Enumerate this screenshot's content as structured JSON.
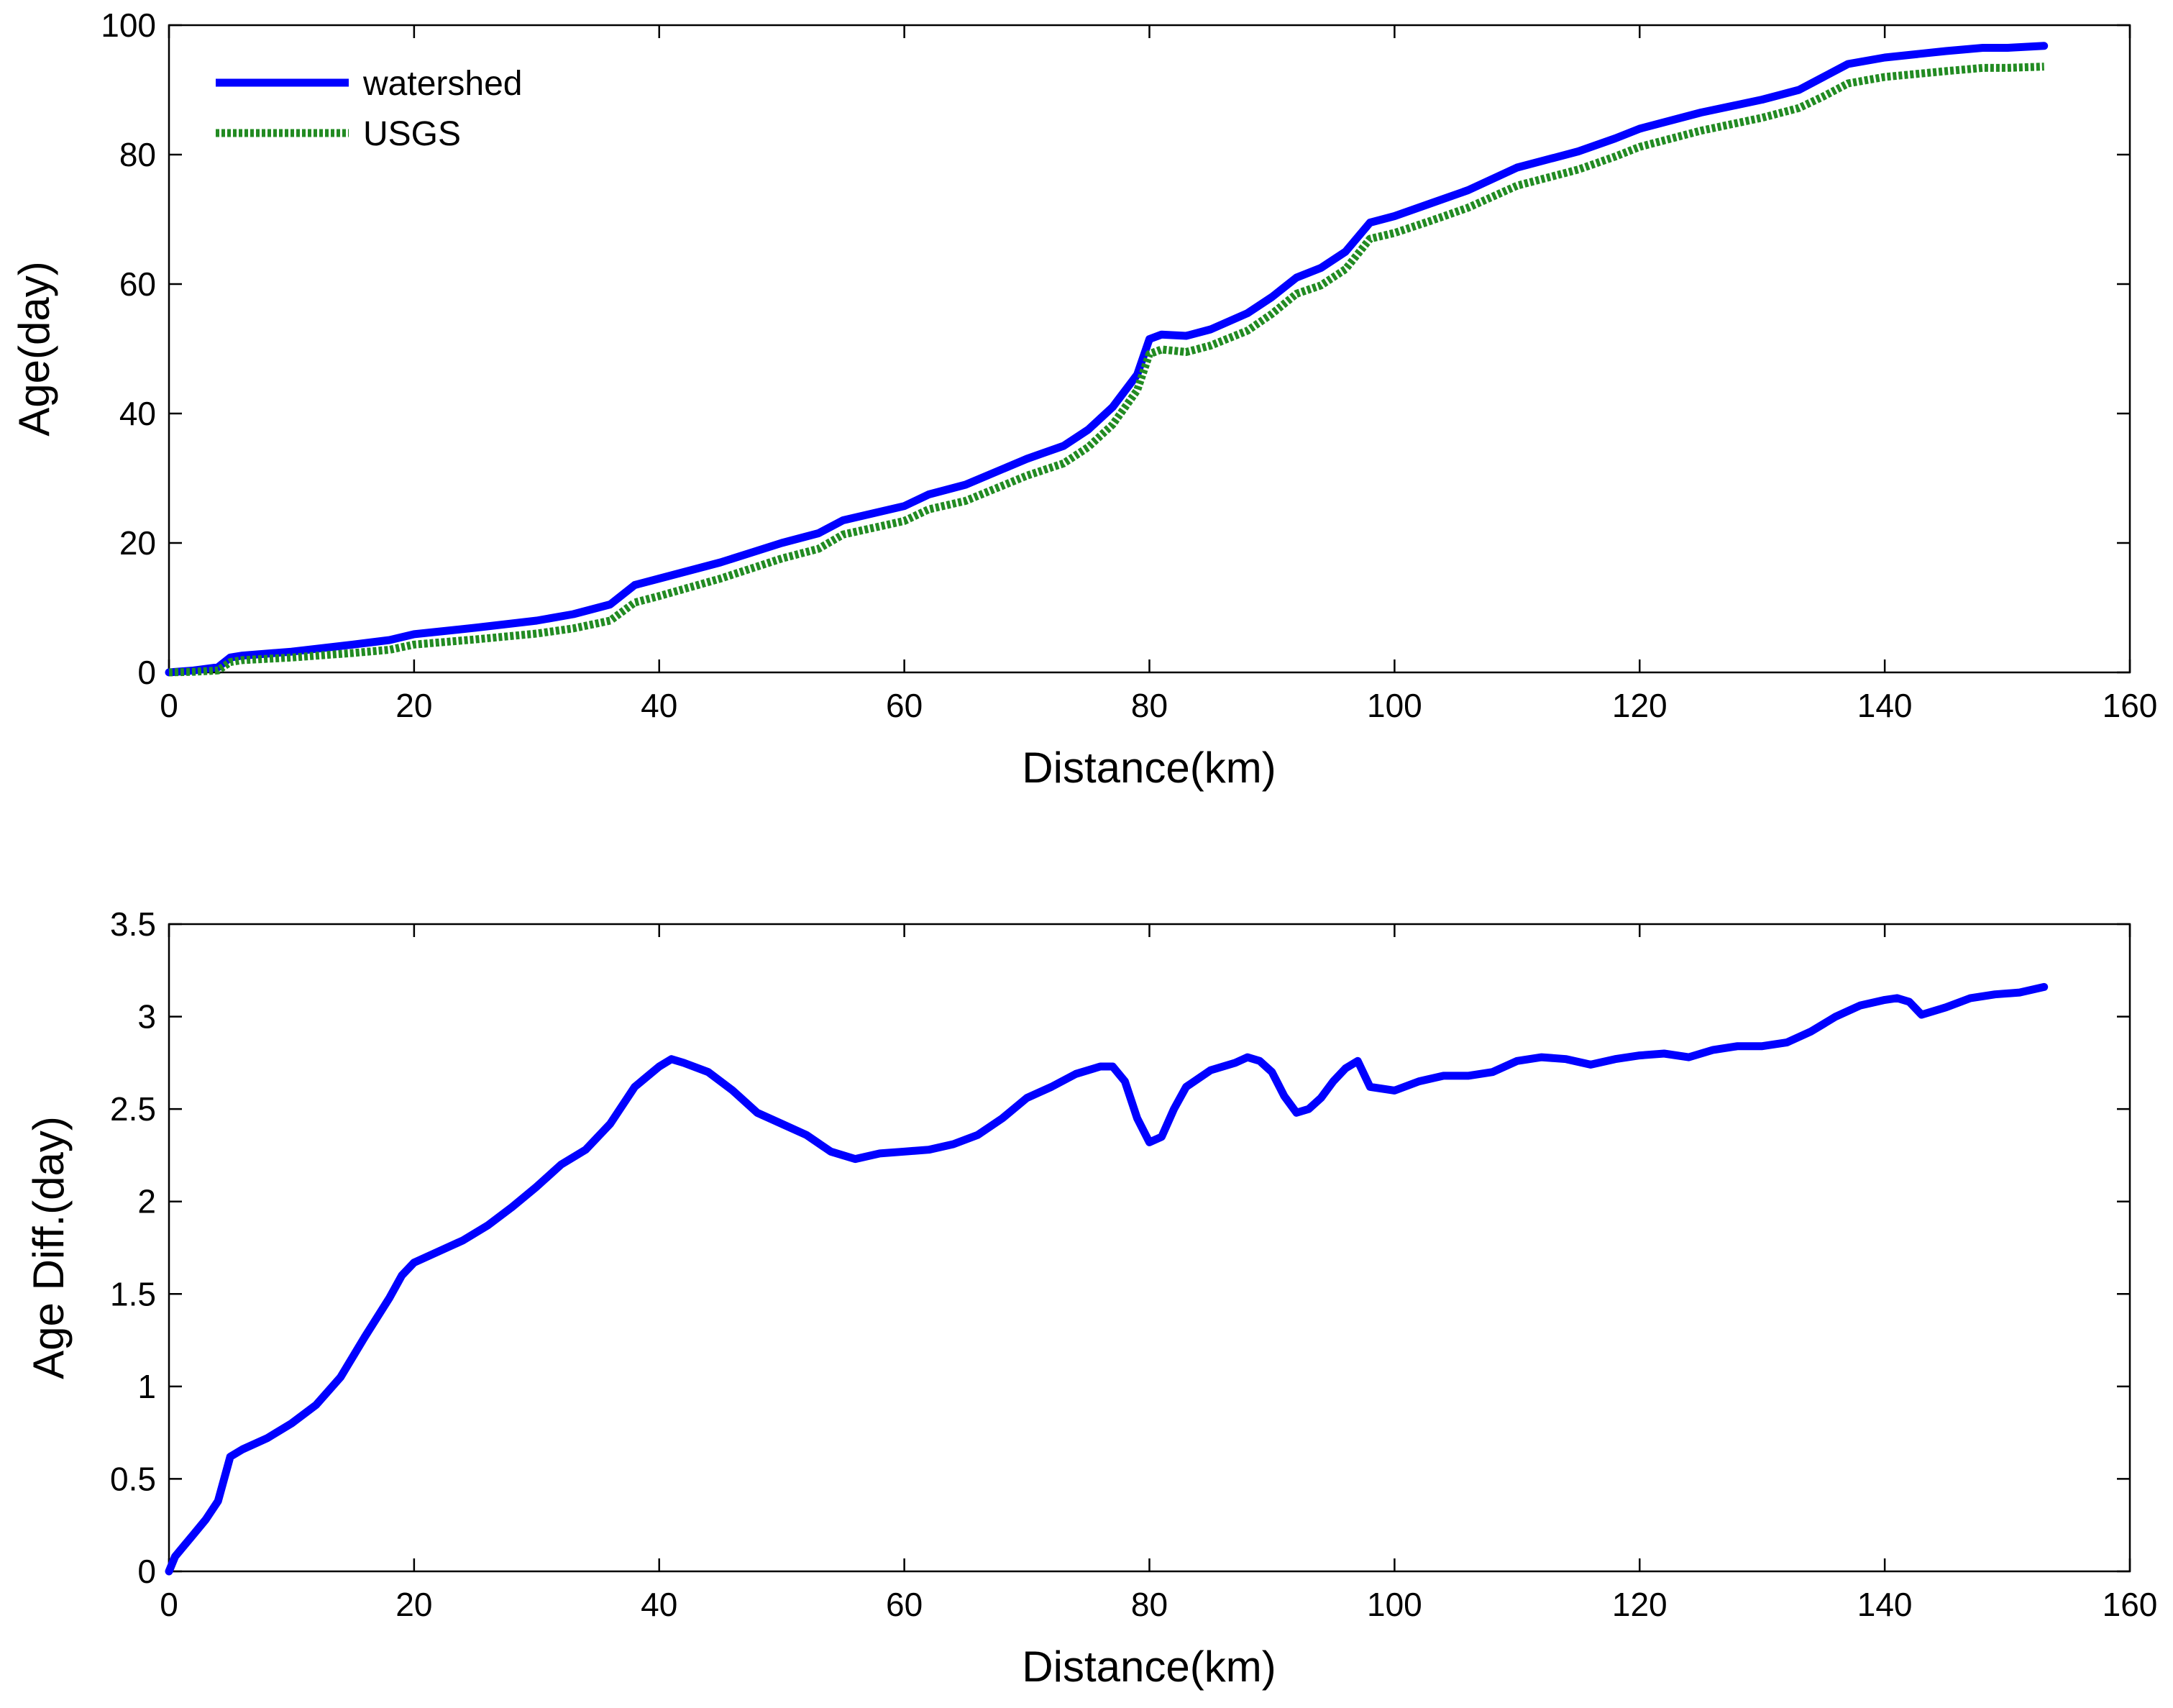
{
  "chart_data": [
    {
      "type": "line",
      "title": "",
      "xlabel": "Distance(km)",
      "ylabel": "Age(day)",
      "xlim": [
        0,
        160
      ],
      "ylim": [
        0,
        100
      ],
      "xticks": [
        0,
        20,
        40,
        60,
        80,
        100,
        120,
        140,
        160
      ],
      "yticks": [
        0,
        20,
        40,
        60,
        80,
        100
      ],
      "xtick_labels": [
        "0",
        "20",
        "40",
        "60",
        "80",
        "100",
        "120",
        "140",
        "160"
      ],
      "ytick_labels": [
        "0",
        "20",
        "40",
        "60",
        "80",
        "100"
      ],
      "grid": false,
      "legend_position": "top-left",
      "series": [
        {
          "name": "watershed",
          "color": "#0000ff",
          "style": "solid",
          "x": [
            0,
            2,
            4,
            5,
            6,
            10,
            15,
            18,
            20,
            25,
            30,
            33,
            36,
            38,
            40,
            45,
            50,
            53,
            55,
            60,
            62,
            65,
            70,
            73,
            75,
            77,
            79,
            80,
            81,
            83,
            85,
            88,
            90,
            92,
            94,
            96,
            98,
            100,
            103,
            106,
            110,
            115,
            118,
            120,
            125,
            130,
            133,
            135,
            137,
            140,
            145,
            148,
            150,
            153
          ],
          "values": [
            0,
            0.3,
            0.8,
            2.3,
            2.6,
            3.2,
            4.3,
            5.0,
            5.9,
            6.9,
            8.0,
            9.0,
            10.5,
            13.5,
            14.5,
            17.0,
            20.0,
            21.5,
            23.5,
            25.7,
            27.5,
            29.0,
            33.0,
            35.0,
            37.5,
            41.0,
            46.0,
            51.5,
            52.2,
            52.0,
            53.0,
            55.5,
            58.0,
            61.0,
            62.5,
            65.0,
            69.5,
            70.5,
            72.5,
            74.5,
            78.0,
            80.5,
            82.5,
            84.0,
            86.5,
            88.5,
            90.0,
            92.0,
            94.0,
            95.0,
            96.0,
            96.5,
            96.5,
            96.8
          ]
        },
        {
          "name": "USGS",
          "color": "#228b22",
          "style": "dotted",
          "x": [
            0,
            2,
            4,
            5,
            6,
            10,
            15,
            18,
            20,
            25,
            30,
            33,
            36,
            38,
            40,
            45,
            50,
            53,
            55,
            60,
            62,
            65,
            70,
            73,
            75,
            77,
            79,
            80,
            81,
            83,
            85,
            88,
            90,
            92,
            94,
            96,
            98,
            100,
            103,
            106,
            110,
            115,
            118,
            120,
            125,
            130,
            133,
            135,
            137,
            140,
            145,
            148,
            150,
            153
          ],
          "values": [
            0,
            0.1,
            0.3,
            1.6,
            1.9,
            2.3,
            3.0,
            3.5,
            4.3,
            5.1,
            6.0,
            6.8,
            8.0,
            10.8,
            11.8,
            14.5,
            17.6,
            19.1,
            21.3,
            23.4,
            25.2,
            26.5,
            30.4,
            32.3,
            34.8,
            38.3,
            43.6,
            49.2,
            49.9,
            49.5,
            50.5,
            52.8,
            55.4,
            58.5,
            59.8,
            62.3,
            67.0,
            67.9,
            69.8,
            71.8,
            75.2,
            77.7,
            79.7,
            81.2,
            83.7,
            85.7,
            87.2,
            89.0,
            91.0,
            92.0,
            92.9,
            93.4,
            93.4,
            93.6
          ]
        }
      ]
    },
    {
      "type": "line",
      "title": "",
      "xlabel": "Distance(km)",
      "ylabel": "Age Diff.(day)",
      "xlim": [
        0,
        160
      ],
      "ylim": [
        0,
        3.5
      ],
      "xticks": [
        0,
        20,
        40,
        60,
        80,
        100,
        120,
        140,
        160
      ],
      "yticks": [
        0,
        0.5,
        1,
        1.5,
        2,
        2.5,
        3,
        3.5
      ],
      "xtick_labels": [
        "0",
        "20",
        "40",
        "60",
        "80",
        "100",
        "120",
        "140",
        "160"
      ],
      "ytick_labels": [
        "0",
        "0.5",
        "1",
        "1.5",
        "2",
        "2.5",
        "3",
        "3.5"
      ],
      "grid": false,
      "series": [
        {
          "name": "Age Diff.",
          "color": "#0000ff",
          "style": "solid",
          "x": [
            0,
            0.5,
            1,
            2,
            3,
            4,
            4.5,
            5,
            6,
            8,
            10,
            12,
            14,
            16,
            18,
            19,
            20,
            22,
            24,
            26,
            28,
            30,
            32,
            34,
            36,
            38,
            40,
            41,
            42,
            44,
            46,
            48,
            50,
            52,
            54,
            56,
            58,
            60,
            62,
            64,
            66,
            68,
            70,
            72,
            74,
            76,
            77,
            78,
            79,
            80,
            81,
            82,
            83,
            85,
            87,
            88,
            89,
            90,
            91,
            92,
            93,
            94,
            95,
            96,
            97,
            98,
            100,
            102,
            104,
            106,
            108,
            110,
            112,
            114,
            116,
            118,
            120,
            122,
            124,
            126,
            128,
            130,
            132,
            134,
            136,
            138,
            140,
            141,
            142,
            143,
            145,
            147,
            149,
            151,
            153
          ],
          "values": [
            0,
            0.08,
            0.12,
            0.2,
            0.28,
            0.38,
            0.5,
            0.62,
            0.66,
            0.72,
            0.8,
            0.9,
            1.05,
            1.27,
            1.48,
            1.6,
            1.67,
            1.73,
            1.79,
            1.87,
            1.97,
            2.08,
            2.2,
            2.28,
            2.42,
            2.62,
            2.73,
            2.77,
            2.75,
            2.7,
            2.6,
            2.48,
            2.42,
            2.36,
            2.27,
            2.23,
            2.26,
            2.27,
            2.28,
            2.31,
            2.36,
            2.45,
            2.56,
            2.62,
            2.69,
            2.73,
            2.73,
            2.65,
            2.45,
            2.32,
            2.35,
            2.5,
            2.62,
            2.71,
            2.75,
            2.78,
            2.76,
            2.7,
            2.57,
            2.48,
            2.5,
            2.56,
            2.65,
            2.72,
            2.76,
            2.62,
            2.6,
            2.65,
            2.68,
            2.68,
            2.7,
            2.76,
            2.78,
            2.77,
            2.74,
            2.77,
            2.79,
            2.8,
            2.78,
            2.82,
            2.84,
            2.84,
            2.86,
            2.92,
            3.0,
            3.06,
            3.09,
            3.1,
            3.08,
            3.01,
            3.05,
            3.1,
            3.12,
            3.13,
            3.16
          ]
        }
      ]
    }
  ]
}
